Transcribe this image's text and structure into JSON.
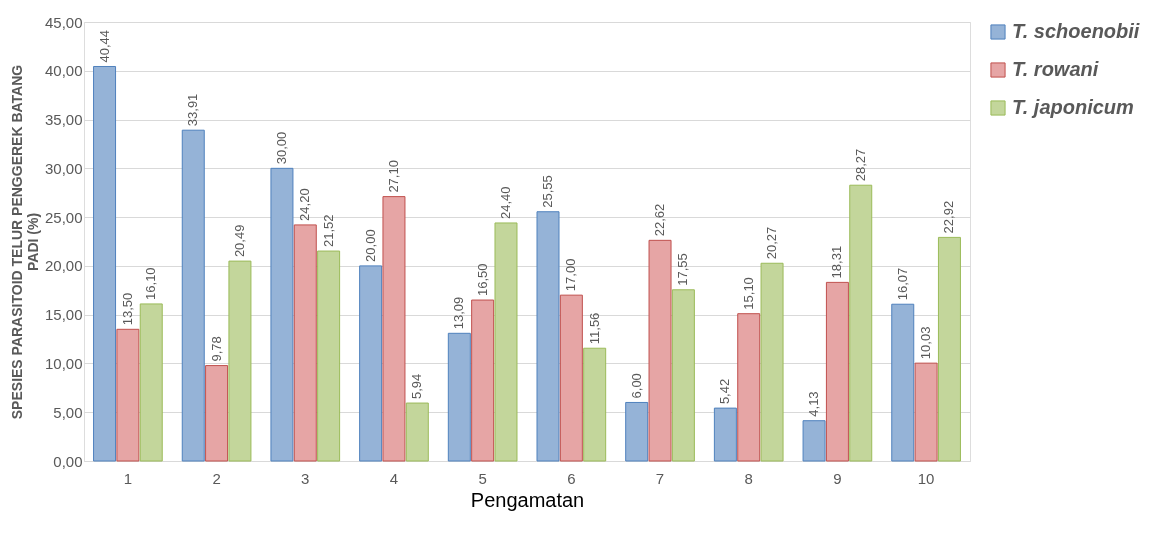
{
  "chart_data": {
    "type": "bar",
    "xlabel": "Pengamatan",
    "ylabel": "SPESIES PARASITOID TELUR PENGGEREK BATANG PADI (%)",
    "categories": [
      "1",
      "2",
      "3",
      "4",
      "5",
      "6",
      "7",
      "8",
      "9",
      "10"
    ],
    "series": [
      {
        "name": "T. schoenobii",
        "color": "#95b3d7",
        "values": [
          40.44,
          33.91,
          30.0,
          20.0,
          13.09,
          25.55,
          6.0,
          5.42,
          4.13,
          16.07
        ],
        "value_labels": [
          "40,44",
          "33,91",
          "30,00",
          "20,00",
          "13,09",
          "25,55",
          "6,00",
          "5,42",
          "4,13",
          "16,07"
        ]
      },
      {
        "name": "T. rowani",
        "color": "#e6a5a5",
        "values": [
          13.5,
          9.78,
          24.2,
          27.1,
          16.5,
          17.0,
          22.62,
          15.1,
          18.31,
          10.03
        ],
        "value_labels": [
          "13,50",
          "9,78",
          "24,20",
          "27,10",
          "16,50",
          "17,00",
          "22,62",
          "15,10",
          "18,31",
          "10,03"
        ]
      },
      {
        "name": "T. japonicum",
        "color": "#c3d69b",
        "values": [
          16.1,
          20.49,
          21.52,
          5.94,
          24.4,
          11.56,
          17.55,
          20.27,
          28.27,
          22.92
        ],
        "value_labels": [
          "16,10",
          "20,49",
          "21,52",
          "5,94",
          "24,40",
          "11,56",
          "17,55",
          "20,27",
          "28,27",
          "22,92"
        ]
      }
    ],
    "ylim": [
      0,
      45
    ],
    "yticks": [
      {
        "value": 0,
        "label": "0,00"
      },
      {
        "value": 5,
        "label": "5,00"
      },
      {
        "value": 10,
        "label": "10,00"
      },
      {
        "value": 15,
        "label": "15,00"
      },
      {
        "value": 20,
        "label": "20,00"
      },
      {
        "value": 25,
        "label": "25,00"
      },
      {
        "value": 30,
        "label": "30,00"
      },
      {
        "value": 35,
        "label": "35,00"
      },
      {
        "value": 40,
        "label": "40,00"
      },
      {
        "value": 45,
        "label": "45,00"
      }
    ],
    "grid": "y",
    "legend": "top right"
  }
}
